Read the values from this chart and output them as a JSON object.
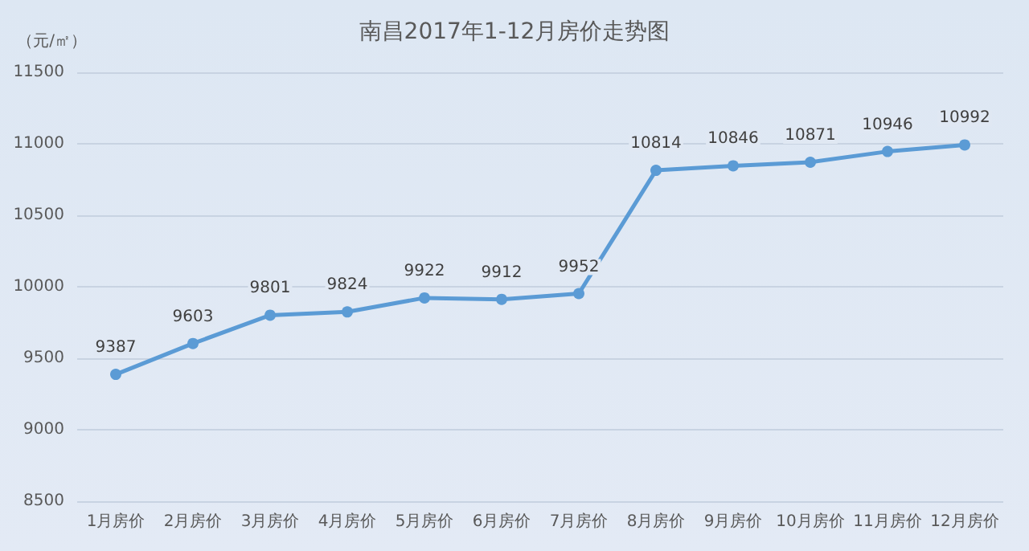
{
  "chart_data": {
    "type": "line",
    "title": "南昌2017年1-12月房价走势图",
    "ylabel": "（元/㎡）",
    "categories": [
      "1月房价",
      "2月房价",
      "3月房价",
      "4月房价",
      "5月房价",
      "6月房价",
      "7月房价",
      "8月房价",
      "9月房价",
      "10月房价",
      "11月房价",
      "12月房价"
    ],
    "series": [
      {
        "color": "#5b9bd5",
        "values": [
          9387,
          9603,
          9801,
          9824,
          9922,
          9912,
          9952,
          10814,
          10846,
          10871,
          10946,
          10992
        ]
      }
    ],
    "ylim": [
      8500,
      11500
    ],
    "yticks": [
      8500,
      9000,
      9500,
      10000,
      10500,
      11000,
      11500
    ],
    "grid": "y",
    "marker": "circle",
    "line_style": "solid",
    "data_labels": true
  }
}
